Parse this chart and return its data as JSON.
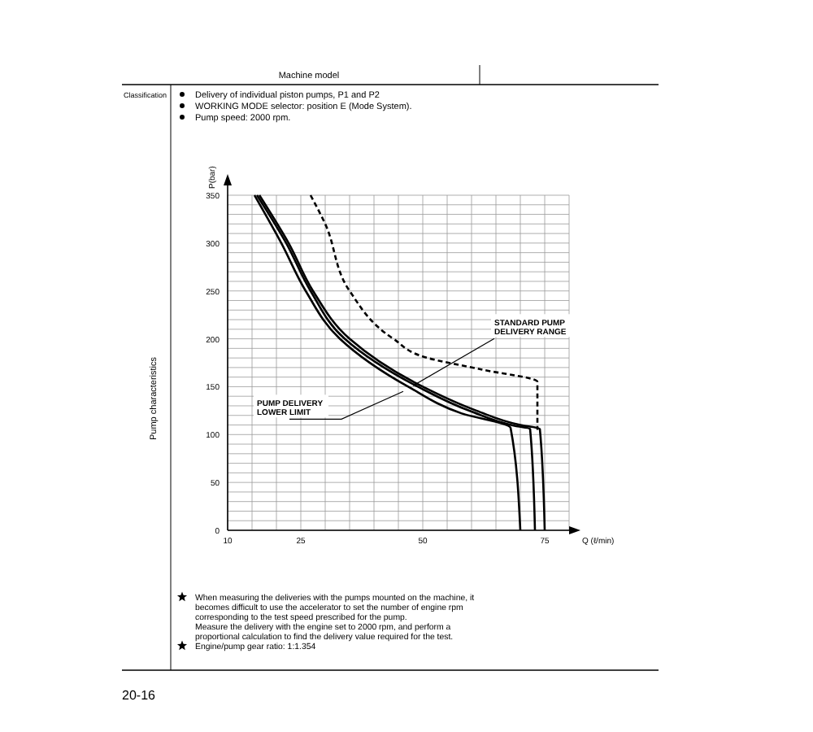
{
  "chart_data": {
    "type": "line",
    "title": "Pump characteristics",
    "xlabel": "Q (ℓ/min)",
    "ylabel": "P(bar)",
    "xlim": [
      10,
      80
    ],
    "xticks": [
      10,
      {
        "value": 15,
        "label": null
      },
      {
        "value": 20,
        "label": null
      },
      25,
      {
        "value": 30,
        "label": null
      },
      {
        "value": 35,
        "label": null
      },
      {
        "value": 40,
        "label": null
      },
      {
        "value": 45,
        "label": null
      },
      50,
      {
        "value": 55,
        "label": null
      },
      {
        "value": 60,
        "label": null
      },
      {
        "value": 65,
        "label": null
      },
      {
        "value": 70,
        "label": null
      },
      75,
      {
        "value": 80,
        "label": null
      }
    ],
    "ylim": [
      0,
      350
    ],
    "yticks": [
      0,
      {
        "value": 10,
        "label": null
      },
      {
        "value": 20,
        "label": null
      },
      {
        "value": 30,
        "label": null
      },
      {
        "value": 40,
        "label": null
      },
      50,
      {
        "value": 60,
        "label": null
      },
      {
        "value": 70,
        "label": null
      },
      {
        "value": 80,
        "label": null
      },
      {
        "value": 90,
        "label": null
      },
      100,
      {
        "value": 110,
        "label": null
      },
      {
        "value": 120,
        "label": null
      },
      {
        "value": 130,
        "label": null
      },
      {
        "value": 140,
        "label": null
      },
      150,
      {
        "value": 160,
        "label": null
      },
      {
        "value": 170,
        "label": null
      },
      {
        "value": 180,
        "label": null
      },
      {
        "value": 190,
        "label": null
      },
      200,
      {
        "value": 210,
        "label": null
      },
      {
        "value": 220,
        "label": null
      },
      {
        "value": 230,
        "label": null
      },
      {
        "value": 240,
        "label": null
      },
      250,
      {
        "value": 260,
        "label": null
      },
      {
        "value": 270,
        "label": null
      },
      {
        "value": 280,
        "label": null
      },
      {
        "value": 290,
        "label": null
      },
      300,
      {
        "value": 310,
        "label": null
      },
      {
        "value": 320,
        "label": null
      },
      {
        "value": 330,
        "label": null
      },
      {
        "value": 340,
        "label": null
      },
      350
    ],
    "grid": true,
    "marker": "none",
    "series": [
      {
        "color": "#000000",
        "line_style": "solid",
        "x": [
          16.5,
          22.5,
          27.5,
          35,
          50,
          61,
          70,
          74,
          75
        ],
        "values": [
          350,
          300,
          250,
          200,
          150,
          125,
          110,
          106,
          0
        ]
      },
      {
        "color": "#000000",
        "line_style": "solid",
        "x": [
          16,
          22,
          27,
          34,
          49,
          60,
          69,
          72,
          73
        ],
        "values": [
          350,
          300,
          250,
          200,
          150,
          124,
          109,
          106,
          0
        ]
      },
      {
        "color": "#000000",
        "line_style": "solid",
        "x": [
          15.5,
          21,
          26,
          33,
          47,
          58,
          68,
          70
        ],
        "values": [
          350,
          300,
          250,
          200,
          150,
          122,
          107,
          0
        ]
      },
      {
        "color": "#000000",
        "line_style": "dashed",
        "x": [
          27,
          30,
          35,
          44,
          51,
          62,
          73.5,
          73.5
        ],
        "values": [
          350,
          320,
          250,
          200,
          180,
          168,
          155,
          105
        ]
      }
    ],
    "annotations": [
      "Machine model",
      "Classification",
      "Delivery of individual piston pumps, P1 and P2",
      "WORKING MODE selector: position E (Mode System).",
      "Pump speed: 2000 rpm.",
      "When measuring the deliveries with the pumps mounted on the machine, it becomes difficult to use the accelerator to set the number of engine rpm corresponding to the test speed prescribed for the pump.",
      "Measure the delivery with the engine set to 2000 rpm, and perform a proportional calculation to find the delivery value required for the test.",
      "Engine/pump gear ratio: 1:1.354",
      "20-16",
      {
        "text": "STANDARD PUMP\nDELIVERY RANGE",
        "x": 48,
        "y": 151
      },
      {
        "text": "PUMP DELIVERY\nLOWER LIMIT",
        "x": 46,
        "y": 145
      }
    ]
  }
}
